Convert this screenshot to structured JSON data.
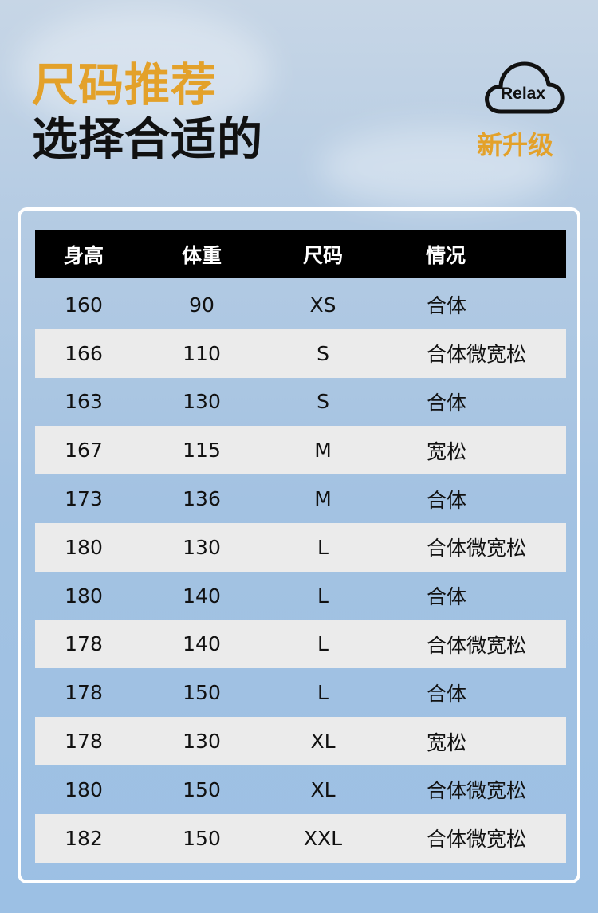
{
  "title": {
    "line1": "尺码推荐",
    "line2": "选择合适的"
  },
  "badge": {
    "logo_text": "Relax",
    "label": "新升级"
  },
  "colors": {
    "accent": "#e3a12a",
    "header_bg": "#000000",
    "stripe": "#ebebeb"
  },
  "table": {
    "headers": [
      "身高",
      "体重",
      "尺码",
      "情况"
    ],
    "rows": [
      [
        "160",
        "90",
        "XS",
        "合体"
      ],
      [
        "166",
        "110",
        "S",
        "合体微宽松"
      ],
      [
        "163",
        "130",
        "S",
        "合体"
      ],
      [
        "167",
        "115",
        "M",
        "宽松"
      ],
      [
        "173",
        "136",
        "M",
        "合体"
      ],
      [
        "180",
        "130",
        "L",
        "合体微宽松"
      ],
      [
        "180",
        "140",
        "L",
        "合体"
      ],
      [
        "178",
        "140",
        "L",
        "合体微宽松"
      ],
      [
        "178",
        "150",
        "L",
        "合体"
      ],
      [
        "178",
        "130",
        "XL",
        "宽松"
      ],
      [
        "180",
        "150",
        "XL",
        "合体微宽松"
      ],
      [
        "182",
        "150",
        "XXL",
        "合体微宽松"
      ]
    ]
  }
}
